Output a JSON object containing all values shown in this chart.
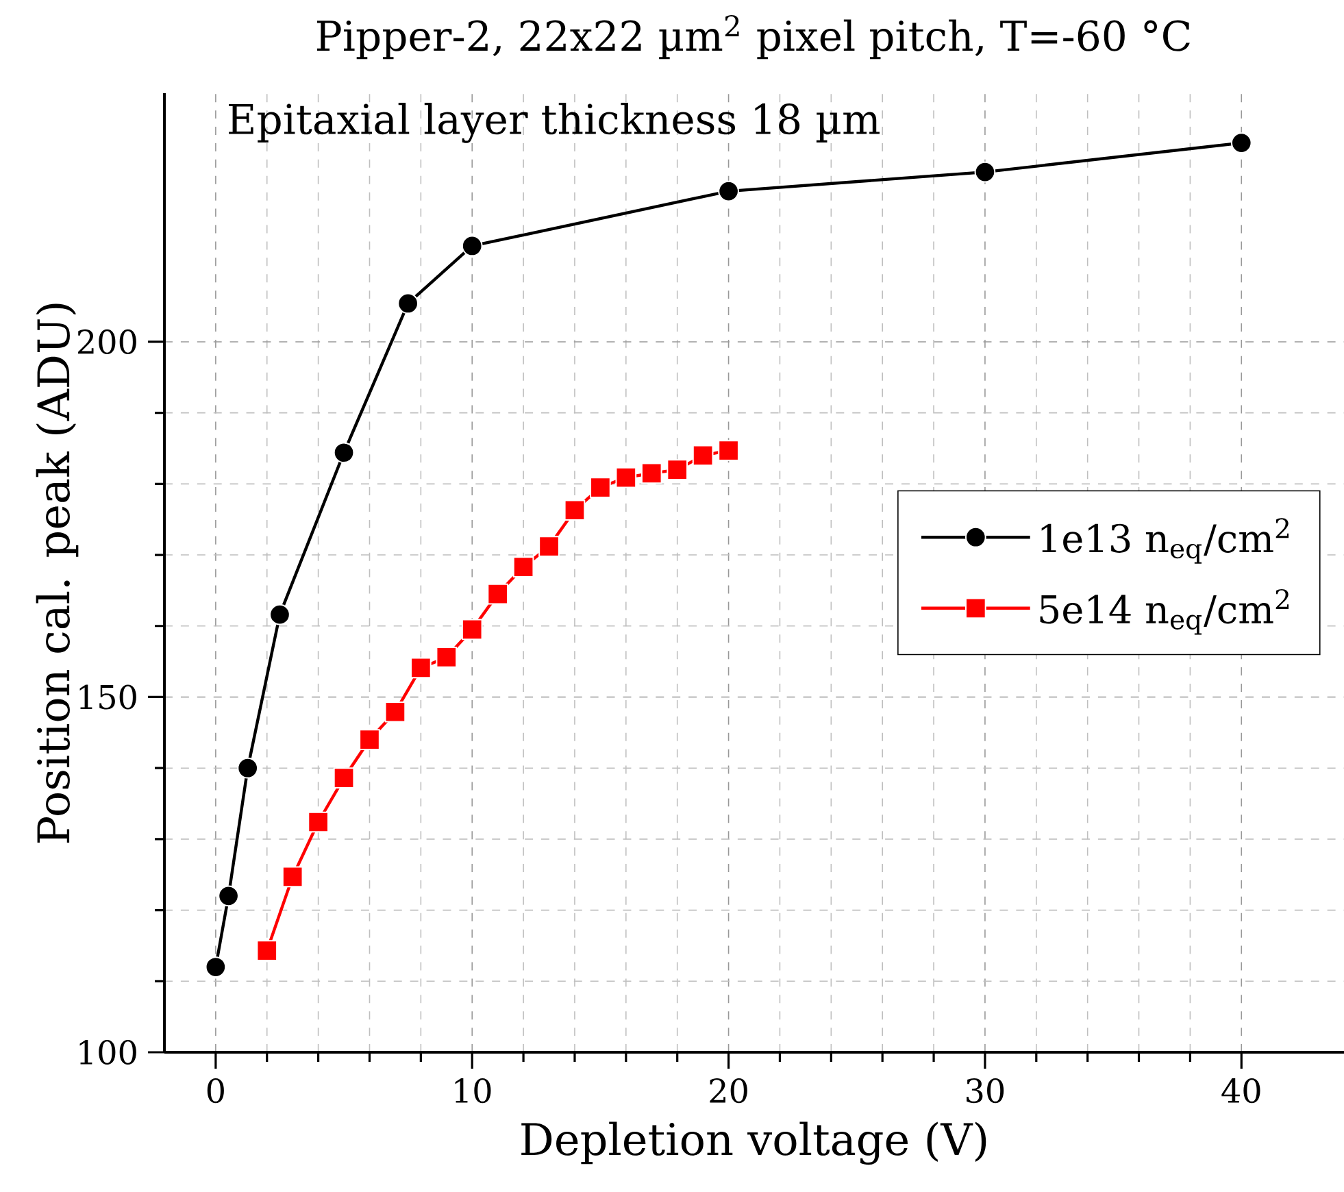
{
  "chart_data": {
    "type": "line",
    "title": "Pipper-2, 22x22 µm$^{2}$ pixel pitch, T=-60 °C",
    "subtitle": "Epitaxial layer thickness 18 µm",
    "xlabel": "Depletion voltage (V)",
    "ylabel": "Position cal. peak (ADU)",
    "xlim": [
      -2,
      44
    ],
    "ylim": [
      100,
      235
    ],
    "xticks": [
      0,
      10,
      20,
      30,
      40
    ],
    "yticks": [
      100,
      150,
      200
    ],
    "grid": true,
    "legend": "right",
    "series": [
      {
        "name": "1e13 n$_{eq}$/cm$^{2}$",
        "color": "#000000",
        "marker": "circle",
        "x": [
          0,
          0.5,
          1.25,
          2.5,
          5,
          7.5,
          10,
          20,
          30,
          40
        ],
        "values": [
          112.0,
          122.0,
          140.0,
          161.6,
          184.4,
          205.4,
          213.5,
          221.2,
          223.9,
          228.0
        ]
      },
      {
        "name": "5e14 n$_{eq}$/cm$^{2}$",
        "color": "#ff0000",
        "marker": "square",
        "x": [
          2,
          3,
          4,
          5,
          6,
          7,
          8,
          9,
          10,
          11,
          12,
          13,
          14,
          15,
          16,
          17,
          18,
          19,
          20
        ],
        "values": [
          114.3,
          124.7,
          132.4,
          138.6,
          144.0,
          147.9,
          154.1,
          155.6,
          159.5,
          164.5,
          168.3,
          171.2,
          176.3,
          179.5,
          180.9,
          181.5,
          182.0,
          184.0,
          184.7
        ]
      }
    ]
  }
}
